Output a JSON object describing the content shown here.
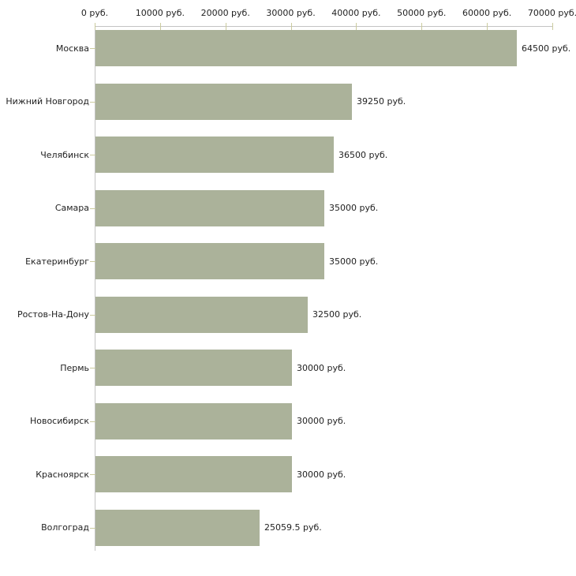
{
  "chart_data": {
    "type": "bar",
    "orientation": "horizontal",
    "title": "",
    "xlabel": "",
    "ylabel": "",
    "grid": false,
    "legend": false,
    "categories": [
      "Москва",
      "Нижний Новгород",
      "Челябинск",
      "Самара",
      "Екатеринбург",
      "Ростов-На-Дону",
      "Пермь",
      "Новосибирск",
      "Красноярск",
      "Волгоград"
    ],
    "values": [
      64500,
      39250,
      36500,
      35000,
      35000,
      32500,
      30000,
      30000,
      30000,
      25059.5
    ],
    "value_labels": [
      "64500 руб.",
      "39250 руб.",
      "36500 руб.",
      "35000 руб.",
      "35000 руб.",
      "32500 руб.",
      "30000 руб.",
      "30000 руб.",
      "30000 руб.",
      "25059.5 руб."
    ],
    "x_axis": {
      "position": "top",
      "xlim": [
        0,
        70000
      ],
      "ticks": [
        0,
        10000,
        20000,
        30000,
        40000,
        50000,
        60000,
        70000
      ],
      "tick_labels": [
        "0 руб.",
        "10000 руб.",
        "20000 руб.",
        "30000 руб.",
        "40000 руб.",
        "50000 руб.",
        "60000 руб.",
        "70000 руб."
      ]
    },
    "colors": {
      "bar": "#ABB29A",
      "axis_line": "#C3C3C3",
      "tick": "#CBCB9E",
      "text": "#222222",
      "background": "#FFFFFF"
    }
  }
}
